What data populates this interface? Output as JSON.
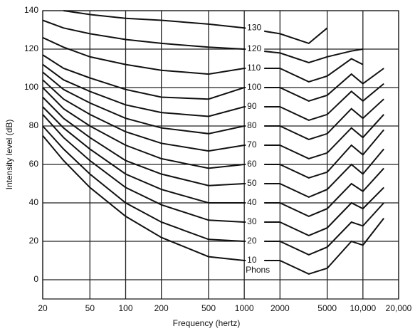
{
  "chart_data": {
    "type": "line",
    "xlabel": "Frequency (hertz)",
    "ylabel": "Intensity level (dB)",
    "annotation": "Phons",
    "xscale": "log",
    "grid": true,
    "color": "#111111",
    "xlim": [
      20,
      20000
    ],
    "ylim": [
      -10,
      140
    ],
    "xticks": [
      20,
      50,
      100,
      200,
      500,
      1000,
      2000,
      5000,
      {
        "value": 10000,
        "label": "10,000"
      },
      {
        "value": 20000,
        "label": "20,000"
      }
    ],
    "yticks": [
      0,
      20,
      40,
      60,
      80,
      100,
      120,
      140
    ],
    "x": [
      20,
      30,
      50,
      100,
      200,
      500,
      1000,
      2000,
      3500,
      5000,
      8000,
      10000,
      15000
    ],
    "series": [
      {
        "name": "10",
        "values": [
          75,
          62,
          48,
          33,
          22,
          12,
          10,
          10,
          3,
          6,
          20,
          18,
          32
        ]
      },
      {
        "name": "20",
        "values": [
          80,
          68,
          55,
          40,
          30,
          21,
          20,
          20,
          13,
          17,
          30,
          28,
          40
        ]
      },
      {
        "name": "30",
        "values": [
          86,
          74,
          62,
          48,
          39,
          31,
          30,
          30,
          23,
          27,
          40,
          37,
          48
        ]
      },
      {
        "name": "40",
        "values": [
          90,
          79,
          68,
          55,
          47,
          40,
          40,
          40,
          33,
          37,
          50,
          46,
          58
        ]
      },
      {
        "name": "50",
        "values": [
          95,
          84,
          74,
          62,
          55,
          49,
          50,
          50,
          43,
          47,
          60,
          55,
          68
        ]
      },
      {
        "name": "60",
        "values": [
          100,
          89,
          80,
          70,
          63,
          58,
          60,
          60,
          53,
          56,
          70,
          65,
          78
        ]
      },
      {
        "name": "70",
        "values": [
          104,
          94,
          86,
          77,
          71,
          67,
          70,
          70,
          63,
          66,
          79,
          74,
          86
        ]
      },
      {
        "name": "80",
        "values": [
          108,
          99,
          92,
          84,
          79,
          76,
          80,
          80,
          73,
          76,
          89,
          84,
          94
        ]
      },
      {
        "name": "90",
        "values": [
          112,
          104,
          98,
          91,
          87,
          85,
          90,
          90,
          83,
          86,
          98,
          93,
          102
        ]
      },
      {
        "name": "100",
        "values": [
          117,
          110,
          105,
          99,
          95,
          94,
          100,
          100,
          93,
          96,
          107,
          102,
          110
        ]
      },
      {
        "name": "110",
        "values": [
          126,
          121,
          116,
          112,
          109,
          107,
          110,
          110,
          103,
          106,
          115,
          112,
          null
        ]
      },
      {
        "name": "120",
        "values": [
          135,
          131,
          128,
          125,
          123,
          121,
          120,
          118,
          113,
          116,
          119,
          120,
          null
        ]
      },
      {
        "name": "130",
        "values": [
          null,
          140,
          138,
          136,
          135,
          133,
          131,
          128,
          123,
          131,
          null,
          null,
          null
        ]
      }
    ]
  }
}
